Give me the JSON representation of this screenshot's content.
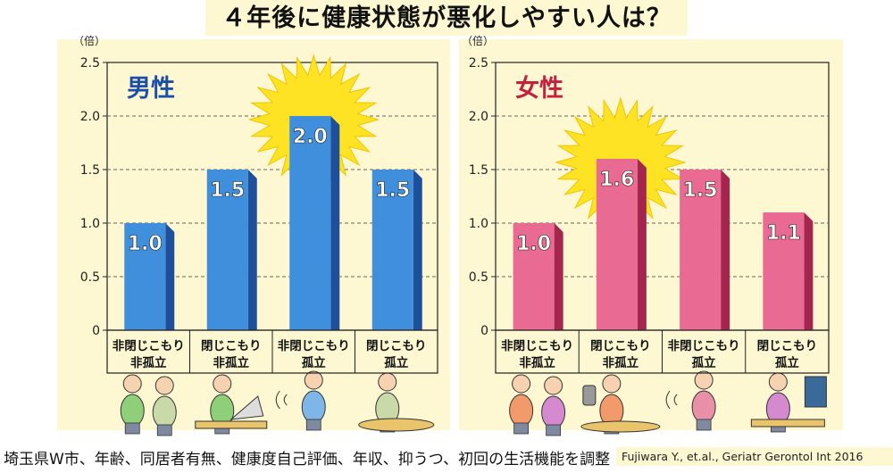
{
  "title": "４年後に健康状態が悪化しやすい人は？",
  "footer_note": "埼玉県W市、年齢、同居者有無、健康度自己評価、年収、抑うつ、初回の生活機能を調整",
  "citation": "Fujiwara Y., et.al., Geriatr Gerontol Int 2016",
  "colors": {
    "male_bar": "#3f8fdc",
    "male_bar_side": "#1d4f9a",
    "male_label": "#1c4fa6",
    "female_bar": "#e96a92",
    "female_bar_side": "#a4264e",
    "female_label": "#c2213f",
    "sun": "#fde323",
    "panel_bg": "#fdf7d2"
  },
  "chart_data": [
    {
      "type": "bar",
      "panel_label": "男性",
      "ylabel": "（倍）",
      "ylim": [
        0,
        2.5
      ],
      "yticks": [
        "0",
        "0.5",
        "1.0",
        "1.5",
        "2.0",
        "2.5"
      ],
      "grid": "dashed horizontal",
      "categories": [
        {
          "line1": "非閉じこもり",
          "line2": "非孤立"
        },
        {
          "line1": "閉じこもり",
          "line2": "非孤立"
        },
        {
          "line1": "非閉じこもり",
          "line2": "孤立"
        },
        {
          "line1": "閉じこもり",
          "line2": "孤立"
        }
      ],
      "values": [
        1.0,
        1.5,
        2.0,
        1.5
      ],
      "value_labels": [
        "1.0",
        "1.5",
        "2.0",
        "1.5"
      ],
      "highlight_index": 2,
      "icons": [
        "two-men-talking-icon",
        "man-using-laptop-icon",
        "man-walking-alone-icon",
        "man-reading-alone-icon"
      ]
    },
    {
      "type": "bar",
      "panel_label": "女性",
      "ylabel": "（倍）",
      "ylim": [
        0,
        2.5
      ],
      "yticks": [
        "0",
        "0.5",
        "1.0",
        "1.5",
        "2.0",
        "2.5"
      ],
      "grid": "dashed horizontal",
      "categories": [
        {
          "line1": "非閉じこもり",
          "line2": "非孤立"
        },
        {
          "line1": "閉じこもり",
          "line2": "非孤立"
        },
        {
          "line1": "非閉じこもり",
          "line2": "孤立"
        },
        {
          "line1": "閉じこもり",
          "line2": "孤立"
        }
      ],
      "values": [
        1.0,
        1.6,
        1.5,
        1.1
      ],
      "value_labels": [
        "1.0",
        "1.6",
        "1.5",
        "1.1"
      ],
      "highlight_index": 1,
      "icons": [
        "two-women-talking-icon",
        "woman-on-phone-icon",
        "woman-walking-alone-icon",
        "woman-watching-tv-icon"
      ]
    }
  ]
}
